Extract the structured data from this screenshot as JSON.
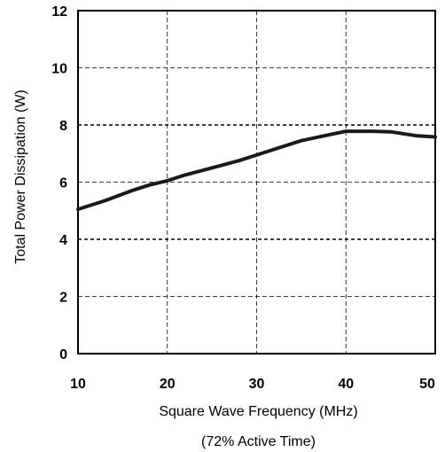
{
  "chart_data": {
    "type": "line",
    "xlabel": "Square Wave Frequency (MHz)",
    "subtitle": "(72% Active Time)",
    "ylabel": "Total Power Dissipation (W)",
    "xlim": [
      10,
      50
    ],
    "ylim": [
      0,
      12
    ],
    "xticks": [
      10,
      20,
      30,
      40,
      50
    ],
    "yticks": [
      0,
      2,
      4,
      6,
      8,
      10,
      12
    ],
    "grid": true,
    "line_color": "#1a1a1a",
    "x": [
      10,
      13,
      16,
      18,
      20,
      22,
      25,
      28,
      30,
      32,
      35,
      38,
      40,
      43,
      45,
      48,
      50
    ],
    "y": [
      5.05,
      5.35,
      5.7,
      5.9,
      6.05,
      6.25,
      6.5,
      6.75,
      6.95,
      7.15,
      7.45,
      7.65,
      7.78,
      7.78,
      7.76,
      7.62,
      7.58
    ]
  }
}
